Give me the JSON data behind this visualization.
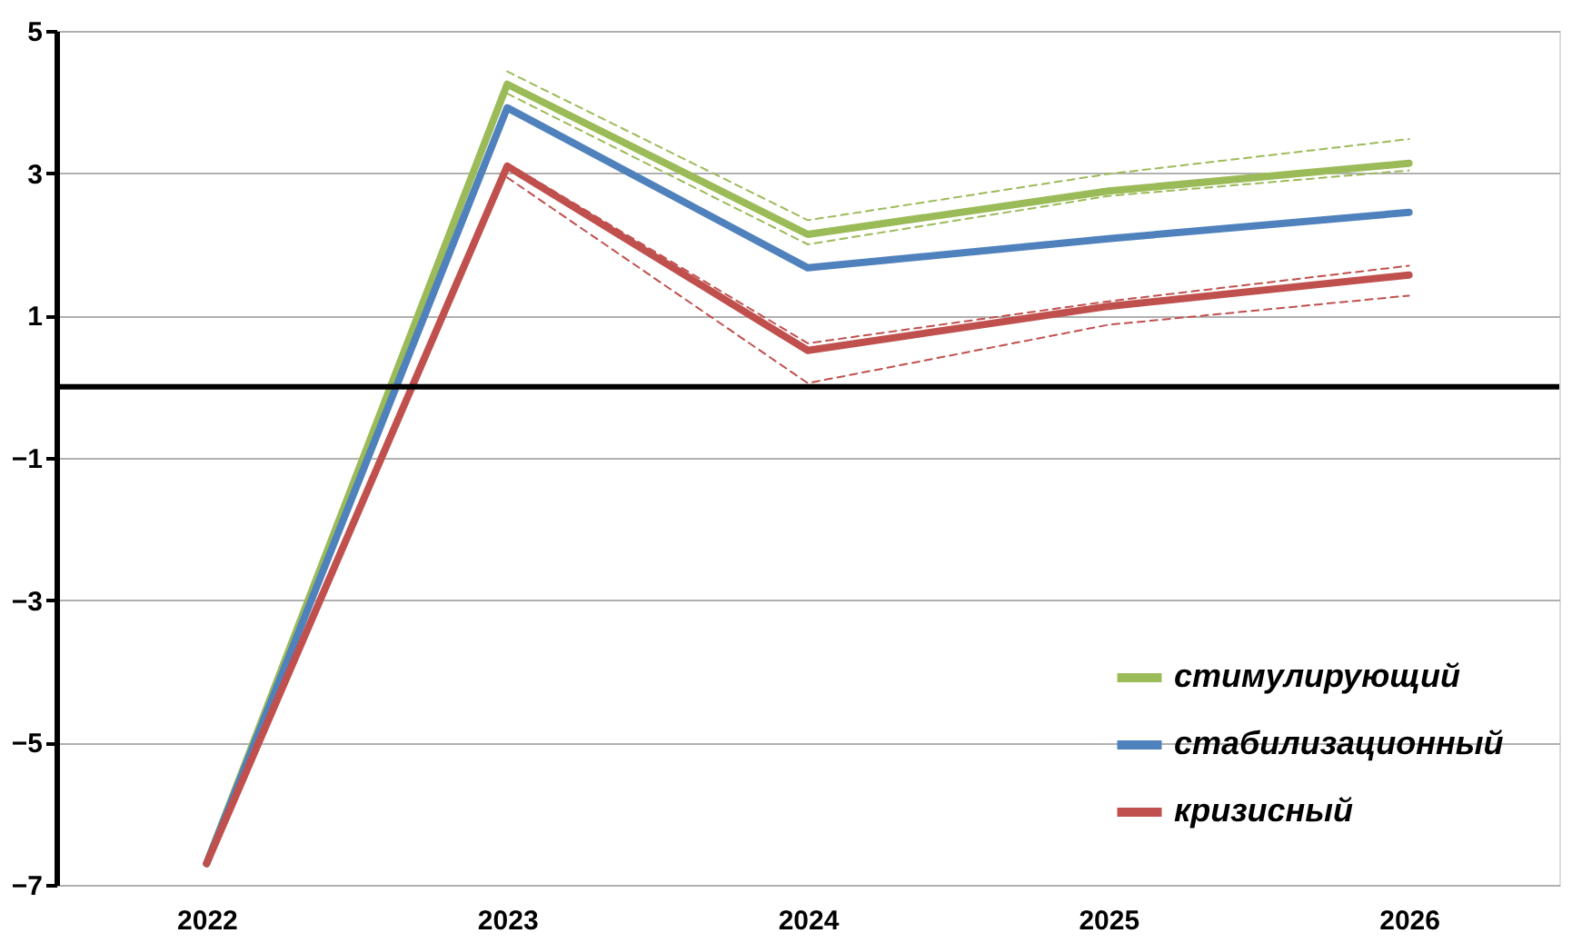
{
  "chart_data": {
    "type": "line",
    "categories": [
      "2022",
      "2023",
      "2024",
      "2025",
      "2026"
    ],
    "series": [
      {
        "name": "стимулирующий",
        "color": "#9bbb59",
        "values": [
          -6.7,
          4.25,
          2.14,
          2.75,
          3.14
        ]
      },
      {
        "name": "стабилизационный",
        "color": "#4f81bd",
        "values": [
          -6.7,
          3.92,
          1.67,
          2.08,
          2.45
        ]
      },
      {
        "name": "кризисный",
        "color": "#c0504d",
        "values": [
          -6.7,
          3.1,
          0.51,
          1.13,
          1.57
        ]
      },
      {
        "color": "#9bbb59",
        "line_style": "dashed",
        "values": [
          null,
          4.43,
          2.34,
          2.99,
          3.48
        ]
      },
      {
        "color": "#9bbb59",
        "line_style": "dashed",
        "values": [
          null,
          4.12,
          2.0,
          2.68,
          3.04
        ]
      },
      {
        "color": "#c0504d",
        "line_style": "dashed",
        "values": [
          null,
          3.14,
          0.61,
          1.2,
          1.7
        ]
      },
      {
        "color": "#c0504d",
        "line_style": "dashed",
        "values": [
          null,
          2.94,
          0.05,
          0.87,
          1.28
        ]
      }
    ],
    "ylim": [
      -7,
      5
    ],
    "yticks": [
      -7,
      -5,
      -3,
      -1,
      1,
      3,
      5
    ],
    "grid": "y",
    "legend": "bottom right",
    "line_style": "solid",
    "marker": "none",
    "ref_lines": [
      {
        "axis": "y",
        "value": 0,
        "color": "#000000"
      }
    ]
  }
}
